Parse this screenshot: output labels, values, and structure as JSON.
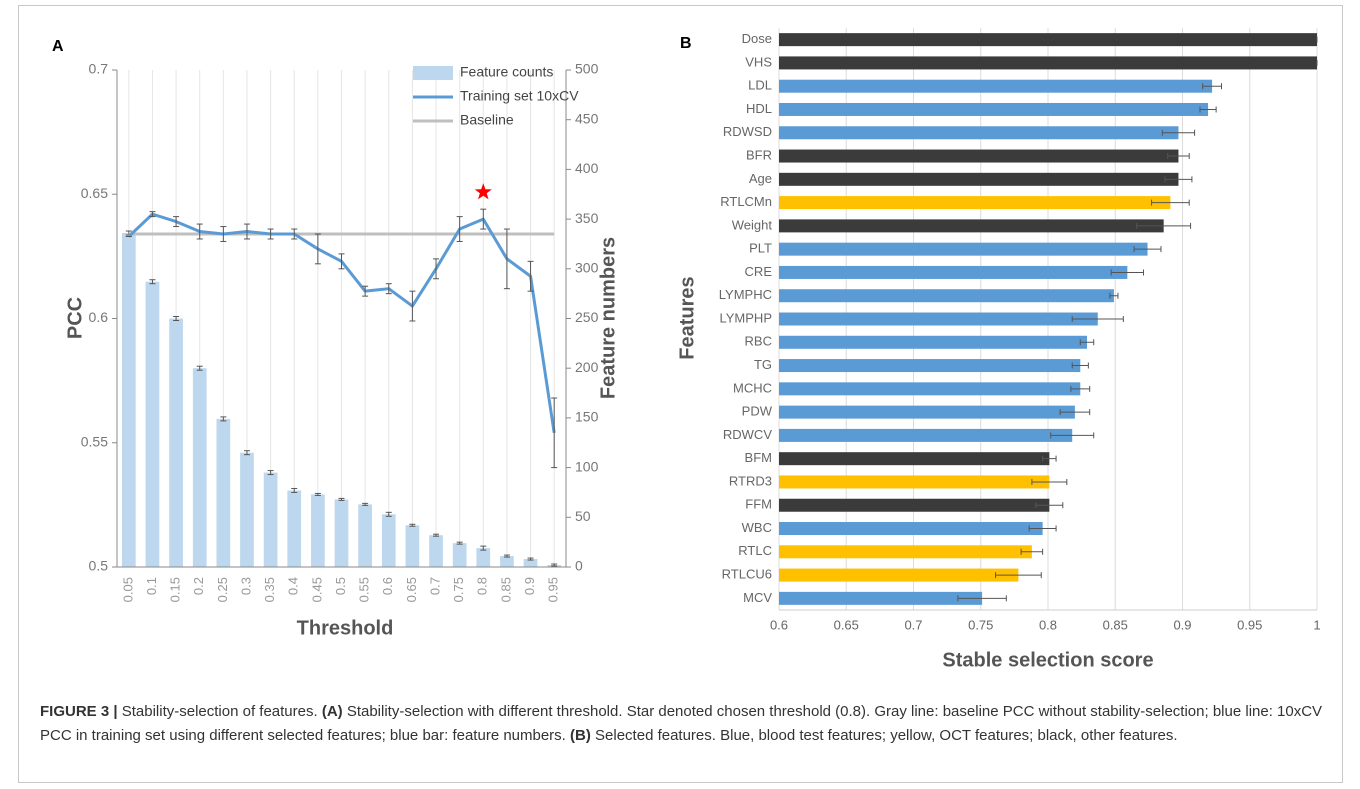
{
  "chart_data": [
    {
      "type": "combo",
      "panel": "A",
      "xlabel": "Threshold",
      "ylabel": "PCC",
      "y2label": "Feature numbers",
      "categories": [
        "0.05",
        "0.1",
        "0.15",
        "0.2",
        "0.25",
        "0.3",
        "0.35",
        "0.4",
        "0.45",
        "0.5",
        "0.55",
        "0.6",
        "0.65",
        "0.7",
        "0.75",
        "0.8",
        "0.85",
        "0.9",
        "0.95"
      ],
      "series": [
        {
          "name": "Feature counts",
          "kind": "bar",
          "axis": "y2",
          "color": "#bdd7ee",
          "values": [
            336,
            287,
            250,
            200,
            149,
            115,
            95,
            77,
            73,
            68,
            63,
            53,
            42,
            32,
            24,
            19,
            11,
            8,
            2
          ],
          "errors": [
            2,
            2,
            2,
            2,
            2,
            2,
            2,
            2,
            1,
            1,
            1,
            2,
            1,
            1,
            1,
            2,
            1,
            1,
            1
          ]
        },
        {
          "name": "Training set 10xCV",
          "kind": "line",
          "color": "#5b9bd5",
          "values": [
            0.633,
            0.642,
            0.639,
            0.635,
            0.634,
            0.635,
            0.634,
            0.634,
            0.628,
            0.623,
            0.611,
            0.612,
            0.605,
            0.62,
            0.636,
            0.64,
            0.624,
            0.617,
            0.554
          ],
          "errors": [
            0,
            0.001,
            0.002,
            0.003,
            0.003,
            0.003,
            0.002,
            0.002,
            0.006,
            0.003,
            0.002,
            0.002,
            0.006,
            0.004,
            0.005,
            0.004,
            0.012,
            0.006,
            0.014
          ]
        },
        {
          "name": "Baseline",
          "kind": "hline",
          "color": "#bfbfbf",
          "value": 0.634
        }
      ],
      "marker_category": "0.8",
      "marker_color": "#ff0000",
      "ylim": [
        0.5,
        0.7
      ],
      "yticks": [
        0.5,
        0.55,
        0.6,
        0.65,
        0.7
      ],
      "y2lim": [
        0,
        500
      ],
      "y2ticks": [
        0,
        50,
        100,
        150,
        200,
        250,
        300,
        350,
        400,
        450,
        500
      ],
      "grid": true,
      "legend": "upper right"
    },
    {
      "type": "barh",
      "panel": "B",
      "xlabel": "Stable selection score",
      "ylabel": "Features",
      "categories": [
        "Dose",
        "VHS",
        "LDL",
        "HDL",
        "RDWSD",
        "BFR",
        "Age",
        "RTLCMn",
        "Weight",
        "PLT",
        "CRE",
        "LYMPHC",
        "LYMPHP",
        "RBC",
        "TG",
        "MCHC",
        "PDW",
        "RDWCV",
        "BFM",
        "RTRD3",
        "FFM",
        "WBC",
        "RTLC",
        "RTLCU6",
        "MCV"
      ],
      "values": [
        1,
        1,
        0.922,
        0.919,
        0.897,
        0.897,
        0.897,
        0.891,
        0.886,
        0.874,
        0.859,
        0.849,
        0.837,
        0.829,
        0.824,
        0.824,
        0.82,
        0.818,
        0.801,
        0.801,
        0.801,
        0.796,
        0.788,
        0.778,
        0.751
      ],
      "errors": [
        0,
        0,
        0.007,
        0.006,
        0.012,
        0.008,
        0.01,
        0.014,
        0.02,
        0.01,
        0.012,
        0.003,
        0.019,
        0.005,
        0.006,
        0.007,
        0.011,
        0.016,
        0.005,
        0.013,
        0.01,
        0.01,
        0.008,
        0.017,
        0.018
      ],
      "colors": [
        "#3b3b3b",
        "#3b3b3b",
        "#5b9bd5",
        "#5b9bd5",
        "#5b9bd5",
        "#3b3b3b",
        "#3b3b3b",
        "#ffc000",
        "#3b3b3b",
        "#5b9bd5",
        "#5b9bd5",
        "#5b9bd5",
        "#5b9bd5",
        "#5b9bd5",
        "#5b9bd5",
        "#5b9bd5",
        "#5b9bd5",
        "#5b9bd5",
        "#3b3b3b",
        "#ffc000",
        "#3b3b3b",
        "#5b9bd5",
        "#ffc000",
        "#ffc000",
        "#5b9bd5"
      ],
      "xlim": [
        0.6,
        1
      ],
      "xticks": [
        0.6,
        0.65,
        0.7,
        0.75,
        0.8,
        0.85,
        0.9,
        0.95,
        1
      ],
      "grid": true
    }
  ],
  "caption": {
    "label": "FIGURE 3 |",
    "intro": "Stability-selection of features.",
    "a_label": "(A)",
    "a_text": "Stability-selection with different threshold. Star denoted chosen threshold (0.8). Gray line: baseline PCC without stability-selection; blue line: 10xCV PCC in training set using different selected features; blue bar: feature numbers.",
    "b_label": "(B)",
    "b_text": "Selected features. Blue, blood test features; yellow, OCT features; black, other features."
  }
}
